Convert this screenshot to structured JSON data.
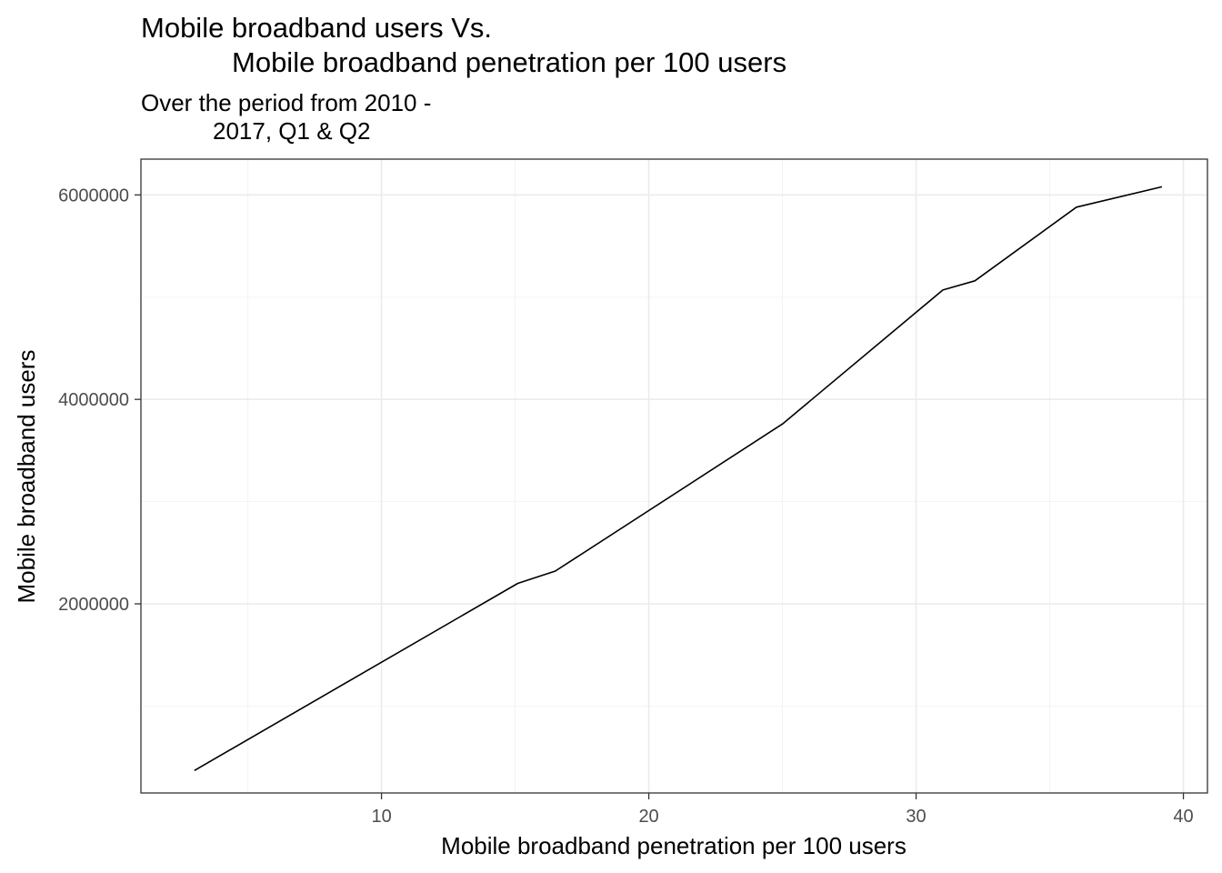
{
  "chart_data": {
    "type": "line",
    "title_lines": [
      "Mobile broadband users Vs.",
      "Mobile broadband penetration per 100 users"
    ],
    "subtitle_lines": [
      "Over the period from 2010 -",
      "2017, Q1 & Q2"
    ],
    "xlabel": "Mobile broadband penetration per 100 users",
    "ylabel": "Mobile broadband users",
    "xlim": [
      1.0,
      40.9
    ],
    "ylim": [
      150000,
      6350000
    ],
    "x_ticks": [
      10,
      20,
      30,
      40
    ],
    "x_tick_labels": [
      "10",
      "20",
      "30",
      "40"
    ],
    "x_minor_ticks": [
      5,
      15,
      25,
      35
    ],
    "y_ticks": [
      2000000,
      4000000,
      6000000
    ],
    "y_tick_labels": [
      "2000000",
      "4000000",
      "6000000"
    ],
    "y_minor_ticks": [
      1000000,
      3000000,
      5000000
    ],
    "grid": true,
    "series": [
      {
        "color": "#000000",
        "x": [
          3.0,
          15.1,
          16.5,
          25.0,
          31.0,
          32.2,
          36.0,
          39.2
        ],
        "y": [
          370000,
          2200000,
          2320000,
          3760000,
          5070000,
          5160000,
          5880000,
          6080000
        ]
      }
    ]
  }
}
